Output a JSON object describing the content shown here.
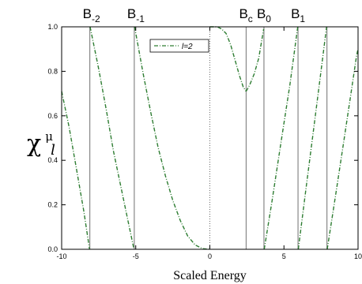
{
  "chart_data": {
    "type": "line",
    "xlabel": "Scaled Energy",
    "ylabel": {
      "main": "χ",
      "sup": "μ",
      "sub": "l"
    },
    "xlim": [
      -10,
      10
    ],
    "ylim": [
      0,
      1
    ],
    "x_ticks": [
      "-10",
      "-5",
      "0",
      "5",
      "10"
    ],
    "y_ticks": [
      "0.0",
      "0.2",
      "0.4",
      "0.6",
      "0.8",
      "1.0"
    ],
    "x_tick_values": [
      -10,
      -5,
      0,
      5,
      10
    ],
    "y_tick_values": [
      0,
      0.2,
      0.4,
      0.6,
      0.8,
      1.0
    ],
    "grid": false,
    "legend": {
      "placement": "top-center",
      "entries": [
        "l=2"
      ]
    },
    "vertical_lines": [
      {
        "x": -8.1,
        "label": "B",
        "sub": "-2",
        "labeled": true
      },
      {
        "x": -5.1,
        "label": "B",
        "sub": "-1",
        "labeled": true
      },
      {
        "x": 2.45,
        "label": "B",
        "sub": "c",
        "labeled": true
      },
      {
        "x": 3.65,
        "label": "B",
        "sub": "0",
        "labeled": true
      },
      {
        "x": 5.95,
        "label": "B",
        "sub": "1",
        "labeled": true
      },
      {
        "x": 7.9,
        "label": "",
        "sub": "",
        "labeled": false
      }
    ],
    "zero_line": {
      "x": 0,
      "style": "dotted"
    },
    "series": [
      {
        "name": "l=2",
        "color": "#2e7d32",
        "segments": [
          [
            [
              -10,
              0.71
            ],
            [
              -9.5,
              0.55
            ],
            [
              -9.0,
              0.36
            ],
            [
              -8.5,
              0.17
            ],
            [
              -8.12,
              0.0
            ]
          ],
          [
            [
              -8.08,
              1.0
            ],
            [
              -7.5,
              0.81
            ],
            [
              -7.0,
              0.63
            ],
            [
              -6.5,
              0.44
            ],
            [
              -6.0,
              0.28
            ],
            [
              -5.5,
              0.12
            ],
            [
              -5.12,
              0.0
            ]
          ],
          [
            [
              -5.08,
              1.0
            ],
            [
              -4.5,
              0.79
            ],
            [
              -4.0,
              0.62
            ],
            [
              -3.5,
              0.46
            ],
            [
              -3.0,
              0.33
            ],
            [
              -2.5,
              0.22
            ],
            [
              -2.0,
              0.13
            ],
            [
              -1.5,
              0.06
            ],
            [
              -1.0,
              0.02
            ],
            [
              -0.5,
              0.003
            ],
            [
              0,
              0.0
            ]
          ],
          [
            [
              0,
              1.0
            ],
            [
              0.5,
              1.0
            ],
            [
              0.8,
              0.99
            ],
            [
              1.1,
              0.97
            ],
            [
              1.4,
              0.92
            ],
            [
              1.7,
              0.85
            ],
            [
              2.0,
              0.78
            ],
            [
              2.25,
              0.73
            ],
            [
              2.45,
              0.71
            ]
          ],
          [
            [
              2.45,
              0.71
            ],
            [
              2.7,
              0.74
            ],
            [
              3.0,
              0.79
            ],
            [
              3.3,
              0.86
            ],
            [
              3.63,
              0.99
            ]
          ],
          [
            [
              3.67,
              0.0
            ],
            [
              4.2,
              0.22
            ],
            [
              4.8,
              0.48
            ],
            [
              5.4,
              0.74
            ],
            [
              5.93,
              1.0
            ]
          ],
          [
            [
              5.97,
              0.0
            ],
            [
              6.5,
              0.28
            ],
            [
              7.0,
              0.54
            ],
            [
              7.5,
              0.8
            ],
            [
              7.88,
              1.0
            ]
          ],
          [
            [
              7.92,
              0.0
            ],
            [
              8.5,
              0.25
            ],
            [
              9.0,
              0.47
            ],
            [
              9.5,
              0.69
            ],
            [
              9.9,
              0.87
            ],
            [
              10,
              0.9
            ]
          ]
        ]
      }
    ]
  }
}
